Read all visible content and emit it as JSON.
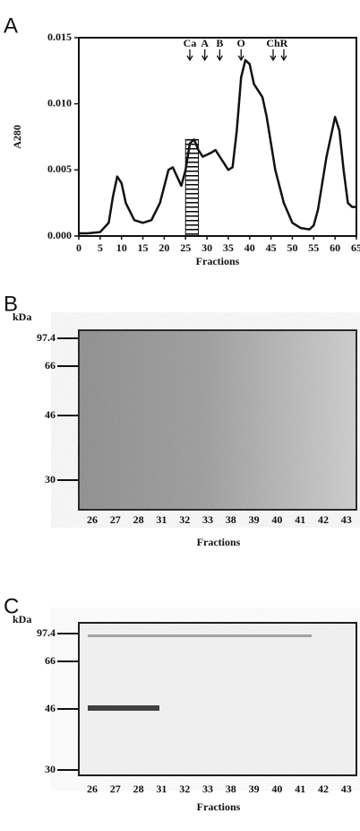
{
  "chart_data": {
    "type": "line",
    "panel_label": "A",
    "y_label": "A280",
    "x_label": "Fractions",
    "x": [
      0,
      2,
      5,
      7,
      8,
      9,
      10,
      11,
      13,
      15,
      17,
      19,
      21,
      22,
      23,
      24,
      25,
      26,
      27,
      28,
      29,
      31,
      32,
      33,
      35,
      36,
      37,
      38,
      39,
      40,
      41,
      42,
      43,
      44,
      45,
      46,
      48,
      50,
      52,
      54,
      55,
      56,
      58,
      60,
      61,
      62,
      63,
      64,
      65
    ],
    "series": [
      {
        "color": "#111111",
        "values": [
          0.0002,
          0.0002,
          0.0003,
          0.001,
          0.003,
          0.0045,
          0.004,
          0.0025,
          0.0012,
          0.001,
          0.0012,
          0.0025,
          0.005,
          0.0052,
          0.0045,
          0.0038,
          0.005,
          0.007,
          0.0073,
          0.0065,
          0.006,
          0.0063,
          0.0065,
          0.006,
          0.005,
          0.0052,
          0.008,
          0.012,
          0.0133,
          0.013,
          0.0115,
          0.011,
          0.0105,
          0.009,
          0.007,
          0.005,
          0.0025,
          0.001,
          0.0006,
          0.0005,
          0.0008,
          0.002,
          0.006,
          0.009,
          0.008,
          0.005,
          0.0025,
          0.0022,
          0.0022
        ]
      }
    ],
    "xlim": [
      0,
      65
    ],
    "xticks": [
      0,
      5,
      10,
      15,
      20,
      25,
      30,
      35,
      40,
      45,
      50,
      55,
      60,
      65
    ],
    "ylim": [
      0,
      0.015
    ],
    "yticks": [
      {
        "value": 0,
        "label": "0.000"
      },
      0.005,
      {
        "value": 0.01,
        "label": "0.010"
      },
      0.015
    ],
    "shaded_range": [
      25,
      28
    ],
    "annotations": [
      {
        "text": "Ca",
        "x": 26
      },
      {
        "text": "A",
        "x": 29.5
      },
      {
        "text": "B",
        "x": 33
      },
      {
        "text": "O",
        "x": 38
      },
      {
        "text": "Ch",
        "x": 45.5
      },
      {
        "text": "R",
        "x": 48
      }
    ]
  },
  "gels": [
    {
      "panel_label": "B",
      "unit": "kDa",
      "markers": [
        97.4,
        66,
        46,
        30
      ],
      "lanes": [
        26,
        27,
        28,
        31,
        32,
        33,
        38,
        39,
        40,
        41,
        42,
        43
      ],
      "x_label": "Fractions"
    },
    {
      "panel_label": "C",
      "unit": "kDa",
      "markers": [
        97.4,
        66,
        46,
        30
      ],
      "lanes": [
        26,
        27,
        28,
        31,
        32,
        33,
        38,
        39,
        40,
        41,
        42,
        43
      ],
      "x_label": "Fractions"
    }
  ]
}
